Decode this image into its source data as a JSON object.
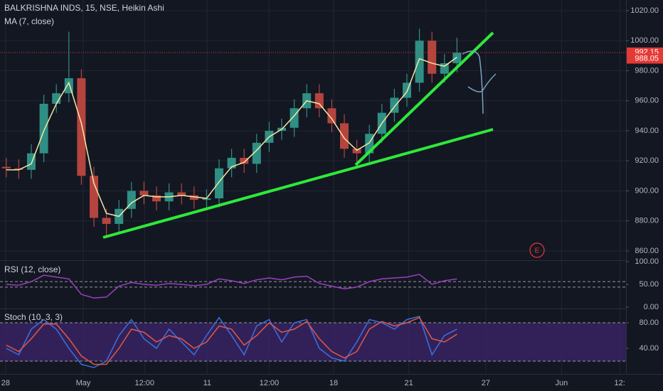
{
  "chart_data": [
    {
      "type": "candlestick",
      "title": "BALKRISHNA INDS, 15, NSE, Heikin Ashi",
      "x": [
        1,
        3,
        5,
        7,
        9,
        11,
        13,
        15,
        17,
        19,
        21,
        23,
        25,
        27,
        29,
        31,
        33,
        35,
        37,
        39,
        41,
        43,
        45,
        47,
        49,
        51,
        53,
        55,
        57,
        59,
        61,
        63,
        65,
        67,
        69,
        71,
        73
      ],
      "open": [
        916,
        915,
        914,
        925,
        958,
        965,
        975,
        910,
        882,
        878,
        888,
        900,
        897,
        893,
        899,
        897,
        894,
        895,
        915,
        922,
        918,
        932,
        940,
        942,
        955,
        965,
        955,
        945,
        928,
        925,
        938,
        952,
        962,
        972,
        1000,
        978,
        985
      ],
      "high": [
        922,
        921,
        931,
        964,
        971,
        1006,
        981,
        916,
        888,
        894,
        906,
        906,
        903,
        905,
        905,
        903,
        901,
        921,
        928,
        928,
        938,
        946,
        948,
        961,
        971,
        971,
        961,
        951,
        934,
        944,
        958,
        968,
        978,
        1008,
        1006,
        991,
        1002
      ],
      "low": [
        909,
        908,
        908,
        919,
        952,
        959,
        904,
        876,
        870,
        872,
        882,
        891,
        887,
        887,
        891,
        888,
        888,
        889,
        909,
        912,
        912,
        926,
        934,
        936,
        949,
        949,
        939,
        922,
        919,
        919,
        932,
        946,
        956,
        966,
        972,
        972,
        979
      ],
      "close": [
        915,
        914,
        925,
        958,
        965,
        975,
        910,
        882,
        878,
        888,
        900,
        897,
        893,
        899,
        897,
        894,
        895,
        915,
        922,
        918,
        932,
        940,
        942,
        955,
        965,
        955,
        945,
        928,
        925,
        938,
        952,
        962,
        972,
        1000,
        978,
        985,
        992
      ],
      "up_color": "#2f8f84",
      "down_color": "#b5443f",
      "series": [
        {
          "name": "MA (7, close)",
          "color": "#f5e7a3",
          "values": [
            914,
            914,
            918,
            940,
            958,
            972,
            945,
            905,
            885,
            883,
            892,
            897,
            896,
            896,
            897,
            896,
            895,
            906,
            916,
            919,
            927,
            936,
            941,
            950,
            960,
            958,
            948,
            935,
            927,
            932,
            945,
            956,
            966,
            988,
            985,
            983,
            989
          ]
        }
      ],
      "price_labels": [
        992.15,
        988.05
      ],
      "price_label_color": "#e53935",
      "annotation": "E",
      "xlim": [
        0,
        100
      ],
      "ylim": [
        854.3,
        1027.1
      ],
      "yticks": [
        {
          "value": 860,
          "label": "860.00"
        },
        {
          "value": 880,
          "label": "880.00"
        },
        {
          "value": 900,
          "label": "900.00"
        },
        {
          "value": 920,
          "label": "920.00"
        },
        {
          "value": 940,
          "label": "940.00"
        },
        {
          "value": 960,
          "label": "960.00"
        },
        {
          "value": 980,
          "label": "980.00"
        },
        {
          "value": 1000,
          "label": "1000.00"
        },
        {
          "value": 1020,
          "label": "1020.00"
        }
      ],
      "xticks": [
        {
          "value": 0.9,
          "label": "28"
        },
        {
          "value": 13.3,
          "label": "May"
        },
        {
          "value": 23.1,
          "label": "12:00"
        },
        {
          "value": 33.1,
          "label": "11"
        },
        {
          "value": 43,
          "label": "12:00"
        },
        {
          "value": 53.3,
          "label": "18"
        },
        {
          "value": 65.3,
          "label": "21"
        },
        {
          "value": 77.6,
          "label": "27"
        },
        {
          "value": 89.7,
          "label": "Jun"
        },
        {
          "value": 99,
          "label": "12:"
        }
      ],
      "grid": true
    },
    {
      "type": "line",
      "title": "RSI (12, close)",
      "x": [
        1,
        3,
        5,
        7,
        9,
        11,
        13,
        15,
        17,
        19,
        21,
        23,
        25,
        27,
        29,
        31,
        33,
        35,
        37,
        39,
        41,
        43,
        45,
        47,
        49,
        51,
        53,
        55,
        57,
        59,
        61,
        63,
        65,
        67,
        69,
        71,
        73
      ],
      "series": [
        {
          "color": "#9c3fc0",
          "values": [
            50,
            48,
            56,
            70,
            66,
            62,
            28,
            20,
            22,
            46,
            54,
            50,
            48,
            52,
            50,
            47,
            50,
            62,
            58,
            52,
            60,
            64,
            60,
            66,
            68,
            52,
            46,
            40,
            44,
            56,
            62,
            64,
            66,
            72,
            50,
            58,
            62
          ]
        }
      ],
      "bands": [
        56,
        44
      ],
      "xlim": [
        0,
        100
      ],
      "ylim": [
        -1.6,
        103.1
      ],
      "yticks": [
        {
          "value": 0,
          "label": "0.00"
        },
        {
          "value": 50,
          "label": "50.00"
        },
        {
          "value": 100,
          "label": "100.00"
        }
      ]
    },
    {
      "type": "line",
      "title": "Stoch (10, 3, 3)",
      "x": [
        1,
        3,
        5,
        7,
        9,
        11,
        13,
        15,
        17,
        19,
        21,
        23,
        25,
        27,
        29,
        31,
        33,
        35,
        37,
        39,
        41,
        43,
        45,
        47,
        49,
        51,
        53,
        55,
        57,
        59,
        61,
        63,
        65,
        67,
        69,
        71,
        73
      ],
      "series": [
        {
          "color": "#3d6fe0",
          "values": [
            40,
            30,
            70,
            85,
            70,
            40,
            15,
            10,
            20,
            60,
            85,
            55,
            40,
            70,
            50,
            30,
            60,
            88,
            60,
            30,
            75,
            85,
            50,
            80,
            85,
            40,
            25,
            20,
            50,
            85,
            80,
            70,
            85,
            90,
            30,
            60,
            70
          ]
        },
        {
          "color": "#e0584a",
          "values": [
            45,
            35,
            55,
            78,
            78,
            55,
            28,
            15,
            15,
            40,
            70,
            65,
            50,
            60,
            55,
            40,
            50,
            75,
            70,
            45,
            60,
            80,
            65,
            70,
            82,
            55,
            35,
            25,
            35,
            70,
            82,
            75,
            80,
            88,
            55,
            50,
            62
          ]
        }
      ],
      "bands": [
        80,
        20
      ],
      "band_fill": "#3b2466",
      "xlim": [
        0,
        100
      ],
      "ylim": [
        0,
        101.1
      ],
      "yticks": [
        {
          "value": 40,
          "label": "40.00"
        },
        {
          "value": 80,
          "label": "80.00"
        }
      ]
    }
  ]
}
